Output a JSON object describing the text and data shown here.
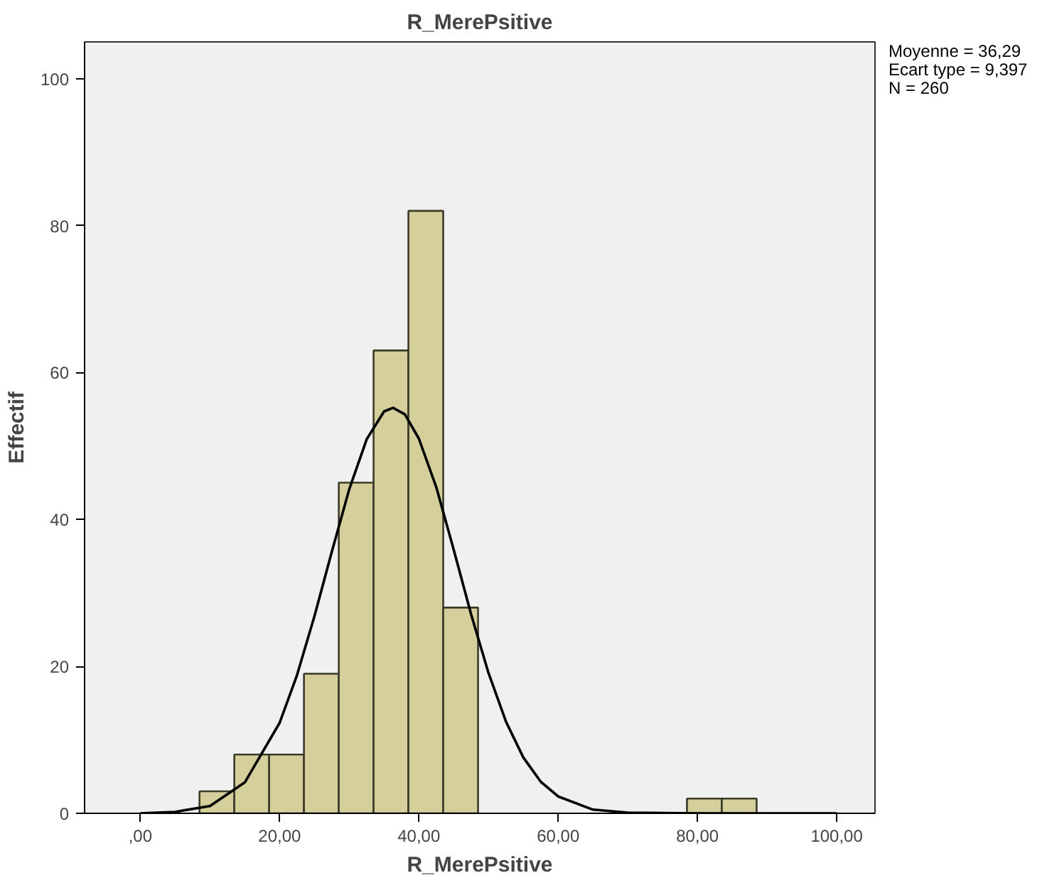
{
  "chart_data": {
    "type": "histogram",
    "title": "R_MerePsitive",
    "xlabel": "R_MerePsitive",
    "ylabel": "Effectif",
    "bins": [
      8.5,
      13.5,
      18.5,
      23.5,
      28.5,
      33.5,
      38.5,
      43.5,
      48.5,
      53.5,
      58.5,
      63.5,
      68.5,
      73.5,
      78.5,
      83.5,
      88.5
    ],
    "values": [
      3,
      8,
      8,
      19,
      45,
      63,
      82,
      28,
      0,
      0,
      0,
      0,
      0,
      0,
      2,
      2
    ],
    "color": "#d4cf9b",
    "series": [
      {
        "type": "line",
        "color": "#000000",
        "x": [
          0,
          5,
          10,
          15,
          20,
          22.5,
          25,
          27.5,
          30,
          32.5,
          35,
          36.29,
          38,
          40,
          42.5,
          45,
          47.5,
          50,
          52.5,
          55,
          57.5,
          60,
          65,
          70,
          80,
          90,
          100
        ],
        "values": [
          0,
          0.2,
          1,
          4.2,
          12.3,
          18.8,
          26.8,
          35.6,
          44.1,
          50.9,
          54.7,
          55.2,
          54.3,
          51.0,
          44.4,
          35.9,
          27.1,
          19.1,
          12.5,
          7.6,
          4.3,
          2.3,
          0.5,
          0.1,
          0,
          0,
          0
        ]
      }
    ],
    "xlim": [
      -8,
      105.5
    ],
    "ylim": [
      0,
      105
    ],
    "xticks": [
      {
        "value": 0,
        "label": ",00"
      },
      {
        "value": 20,
        "label": "20,00"
      },
      {
        "value": 40,
        "label": "40,00"
      },
      {
        "value": 60,
        "label": "60,00"
      },
      {
        "value": 80,
        "label": "80,00"
      },
      {
        "value": 100,
        "label": "100,00"
      }
    ],
    "yticks": [
      0,
      20,
      40,
      60,
      80,
      100
    ],
    "annotations": [
      "Moyenne = 36,29",
      "Ecart type = 9,397",
      "N = 260"
    ]
  }
}
